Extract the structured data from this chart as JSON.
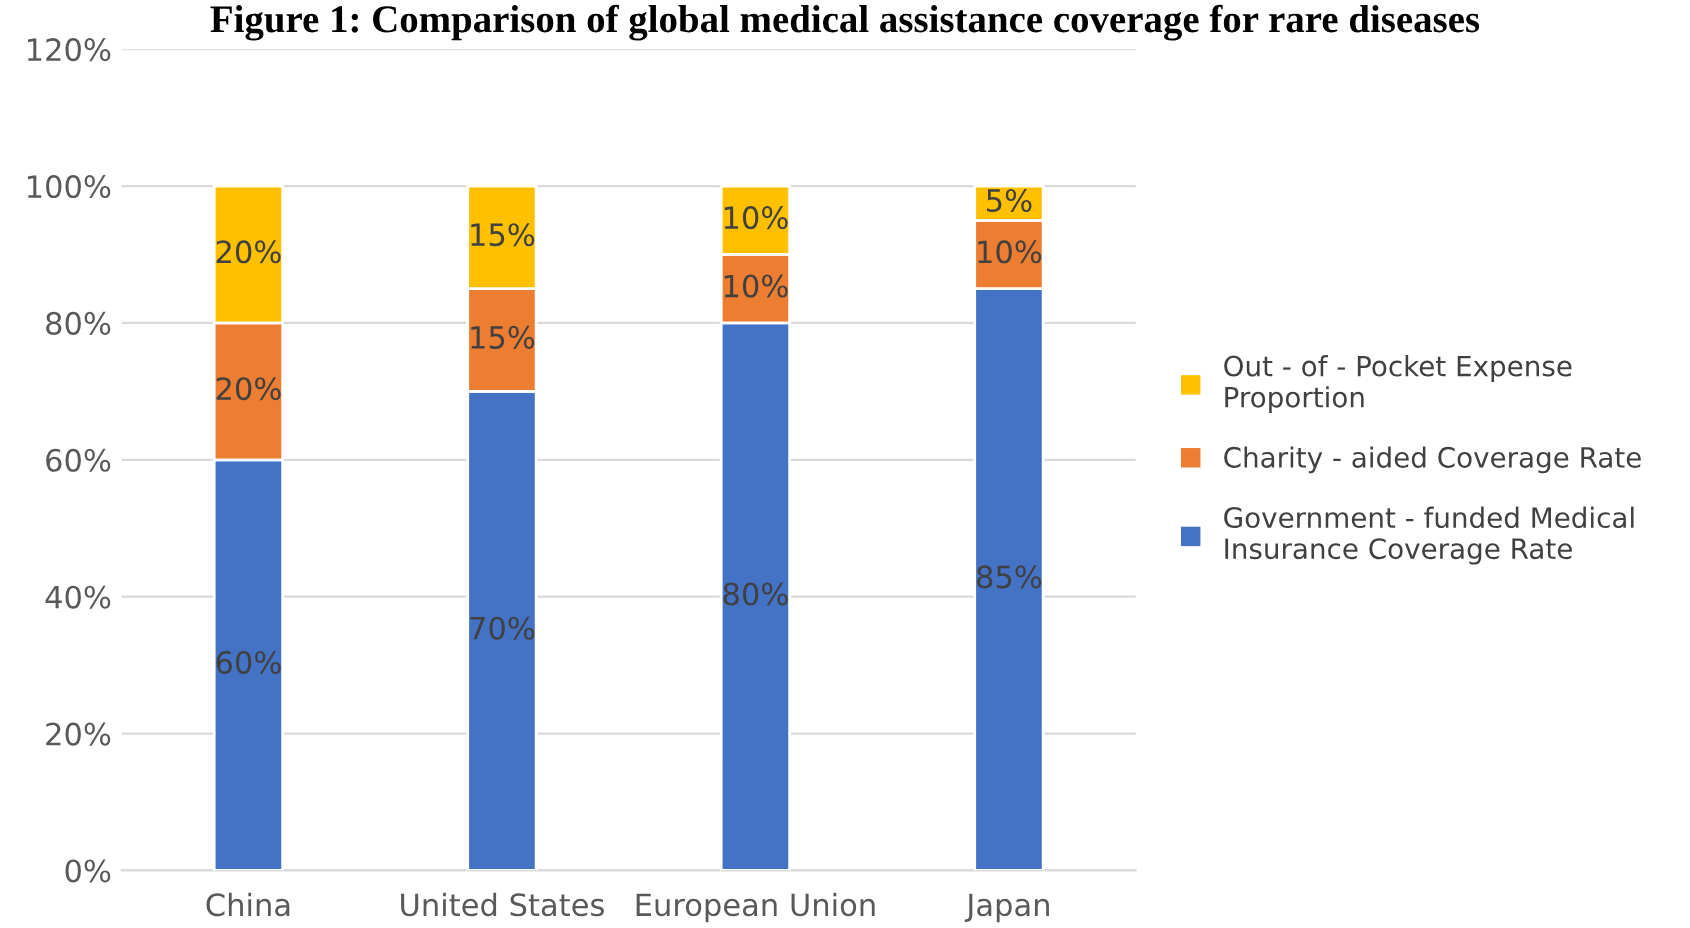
{
  "chart_data": {
    "type": "bar",
    "stacked": true,
    "title": "Figure 1: Comparison of global medical assistance coverage for rare diseases",
    "categories": [
      "China",
      "United States",
      "European Union",
      "Japan"
    ],
    "series": [
      {
        "name": "Government - funded Medical\nInsurance Coverage Rate",
        "color": "#4472c4",
        "values": [
          60,
          70,
          80,
          85
        ],
        "value_labels": [
          "60%",
          "70%",
          "80%",
          "85%"
        ]
      },
      {
        "name": "Charity - aided Coverage Rate",
        "color": "#ed7d31",
        "values": [
          20,
          15,
          10,
          10
        ],
        "value_labels": [
          "20%",
          "15%",
          "10%",
          "10%"
        ]
      },
      {
        "name": "Out - of - Pocket Expense\nProportion",
        "color": "#ffc000",
        "values": [
          20,
          15,
          10,
          5
        ],
        "value_labels": [
          "20%",
          "15%",
          "10%",
          "5%"
        ]
      }
    ],
    "ylim": [
      0,
      120
    ],
    "yticks": [
      {
        "value": 0,
        "label": "0%"
      },
      {
        "value": 20,
        "label": "20%"
      },
      {
        "value": 40,
        "label": "40%"
      },
      {
        "value": 60,
        "label": "60%"
      },
      {
        "value": 80,
        "label": "80%"
      },
      {
        "value": 100,
        "label": "100%"
      },
      {
        "value": 120,
        "label": "120%"
      }
    ],
    "grid": "y",
    "legend": "right"
  }
}
